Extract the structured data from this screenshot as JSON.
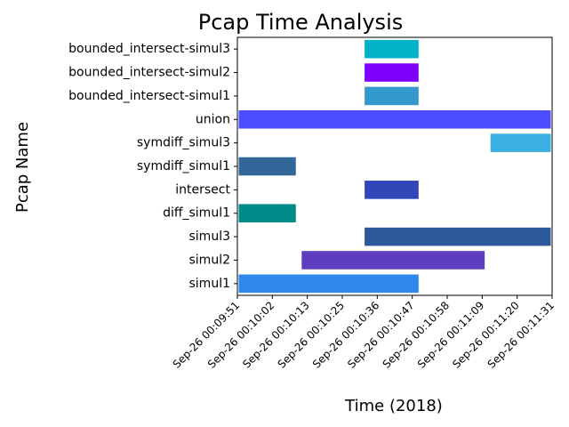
{
  "chart_data": {
    "type": "bar",
    "orientation": "horizontal",
    "title": "Pcap Time Analysis",
    "xlabel": "Time (2018)",
    "ylabel": "Pcap Name",
    "grid": false,
    "x_ticks": [
      "Sep-26  00:09:51",
      "Sep-26  00:10:02",
      "Sep-26  00:10:13",
      "Sep-26  00:10:25",
      "Sep-26  00:10:36",
      "Sep-26  00:10:47",
      "Sep-26  00:10:58",
      "Sep-26  00:11:09",
      "Sep-26  00:11:20",
      "Sep-26  00:11:31"
    ],
    "xlim": [
      "00:09:51",
      "00:11:31"
    ],
    "bars": [
      {
        "name": "simul1",
        "start": "00:09:51",
        "end": "00:10:49",
        "color": "#2f89ea"
      },
      {
        "name": "simul2",
        "start": "00:10:11",
        "end": "00:11:10",
        "color": "#5f3dbf"
      },
      {
        "name": "simul3",
        "start": "00:10:31",
        "end": "00:11:31",
        "color": "#2c5a9c"
      },
      {
        "name": "diff_simul1",
        "start": "00:09:51",
        "end": "00:10:10",
        "color": "#008b8b"
      },
      {
        "name": "intersect",
        "start": "00:10:31",
        "end": "00:10:49",
        "color": "#3146b9"
      },
      {
        "name": "symdiff_simul1",
        "start": "00:09:51",
        "end": "00:10:10",
        "color": "#336699"
      },
      {
        "name": "symdiff_simul3",
        "start": "00:11:11",
        "end": "00:11:31",
        "color": "#3bb0e0"
      },
      {
        "name": "union",
        "start": "00:09:51",
        "end": "00:11:31",
        "color": "#4d4cff"
      },
      {
        "name": "bounded_intersect-simul1",
        "start": "00:10:31",
        "end": "00:10:49",
        "color": "#3399cc"
      },
      {
        "name": "bounded_intersect-simul2",
        "start": "00:10:31",
        "end": "00:10:49",
        "color": "#8000ff"
      },
      {
        "name": "bounded_intersect-simul3",
        "start": "00:10:31",
        "end": "00:10:49",
        "color": "#00b3c9"
      }
    ]
  }
}
